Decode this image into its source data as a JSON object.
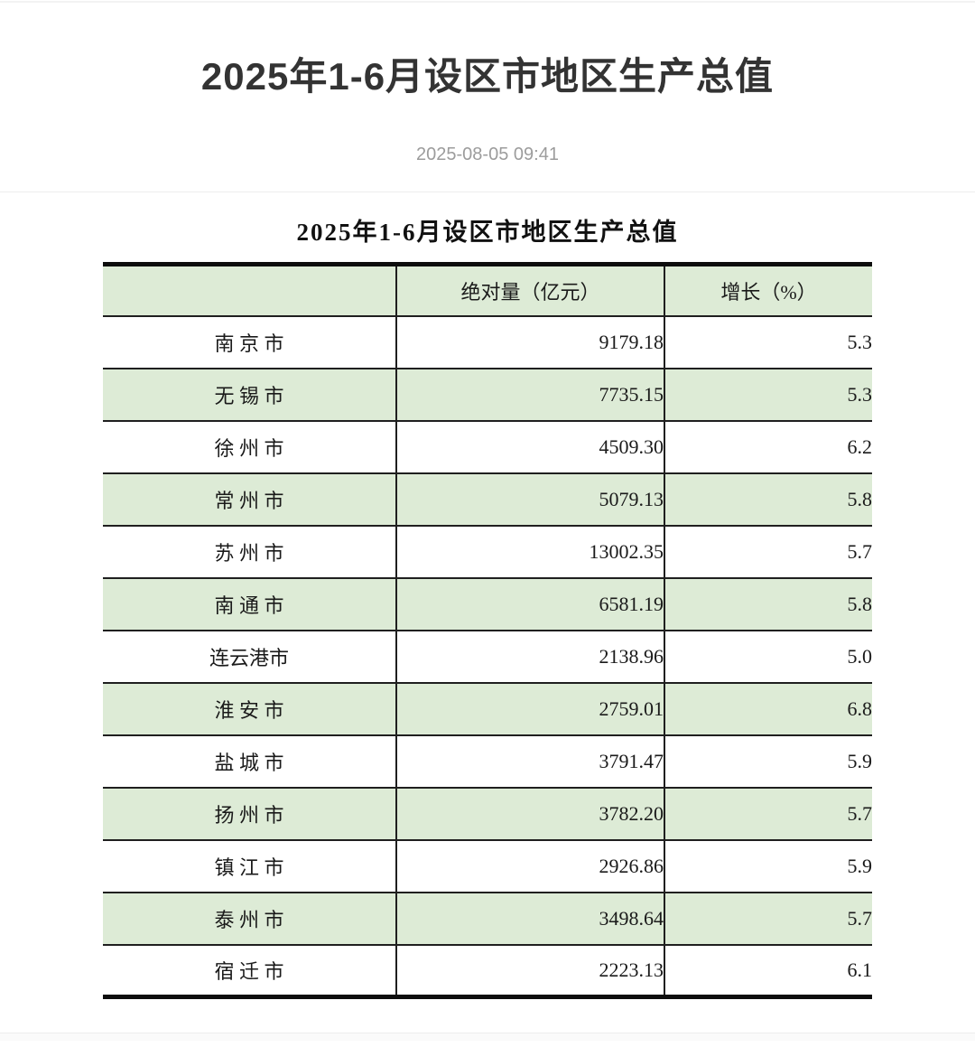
{
  "page": {
    "title": "2025年1-6月设区市地区生产总值",
    "publish_date": "2025-08-05 09:41"
  },
  "table": {
    "title": "2025年1-6月设区市地区生产总值",
    "columns": [
      "",
      "绝对量（亿元）",
      "增长（%）"
    ],
    "rows": [
      {
        "city": "南 京 市",
        "value": "9179.18",
        "growth": "5.3"
      },
      {
        "city": "无 锡 市",
        "value": "7735.15",
        "growth": "5.3"
      },
      {
        "city": "徐 州 市",
        "value": "4509.30",
        "growth": "6.2"
      },
      {
        "city": "常 州 市",
        "value": "5079.13",
        "growth": "5.8"
      },
      {
        "city": "苏 州 市",
        "value": "13002.35",
        "growth": "5.7"
      },
      {
        "city": "南 通 市",
        "value": "6581.19",
        "growth": "5.8"
      },
      {
        "city": "连云港市",
        "value": "2138.96",
        "growth": "5.0"
      },
      {
        "city": "淮 安 市",
        "value": "2759.01",
        "growth": "6.8"
      },
      {
        "city": "盐 城 市",
        "value": "3791.47",
        "growth": "5.9"
      },
      {
        "city": "扬 州 市",
        "value": "3782.20",
        "growth": "5.7"
      },
      {
        "city": "镇 江 市",
        "value": "2926.86",
        "growth": "5.9"
      },
      {
        "city": "泰 州 市",
        "value": "3498.64",
        "growth": "5.7"
      },
      {
        "city": "宿 迁 市",
        "value": "2223.13",
        "growth": "6.1"
      }
    ]
  },
  "colors": {
    "stripe_green": "#ddebd6",
    "table_border": "#1f1f1f",
    "table_outer_border": "#0d0d0d",
    "title_text": "#333333",
    "date_text": "#9c9c9c",
    "divider": "#ededed"
  }
}
